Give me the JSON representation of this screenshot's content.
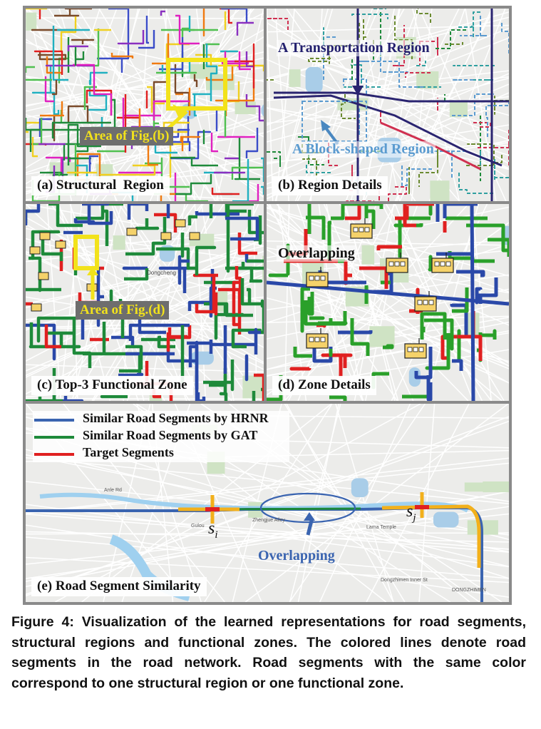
{
  "panels": {
    "a": {
      "label": "(a) Structural  Region",
      "callout": "Area of Fig.(b)"
    },
    "b": {
      "label": "(b) Region Details",
      "transport_label": "A Transportation Region",
      "block_label": "A Block-shaped Region"
    },
    "c": {
      "label": "(c) Top-3 Functional Zone",
      "callout": "Area of Fig.(d)",
      "map_text": "Dongcheng"
    },
    "d": {
      "label": "(d) Zone Details",
      "overlap_label": "Overlapping"
    },
    "e": {
      "label": "(e) Road Segment Similarity",
      "legend": [
        {
          "label": "Similar Road Segments by HRNR",
          "color": "#3a64b0"
        },
        {
          "label": "Similar Road Segments by GAT",
          "color": "#1e8a3a"
        },
        {
          "label": "Target Segments",
          "color": "#e02020"
        }
      ],
      "si": "s",
      "si_sub": "i",
      "sj": "s",
      "sj_sub": "j",
      "overlap_label": "Overlapping",
      "map_texts": [
        "Anle Rd",
        "Zhengjue Alley",
        "Lama Temple",
        "Dongzhimen Inner St",
        "DONGZHIMEN",
        "Gulou"
      ]
    }
  },
  "caption": "Figure 4: Visualization of the learned representations for road segments, structural regions and functional zones. The colored lines denote road segments in the road network. Road segments with the same color correspond to one structural region or one functional zone.",
  "colors": {
    "highlight": "#f2e21b",
    "callout_bg": "#6e6e6e",
    "arrow_dark": "#2a2470",
    "arrow_blue": "#4a88c0",
    "transport_text": "#23206e",
    "block_text": "#5b9bd0",
    "overlap_e": "#3a64b0"
  }
}
